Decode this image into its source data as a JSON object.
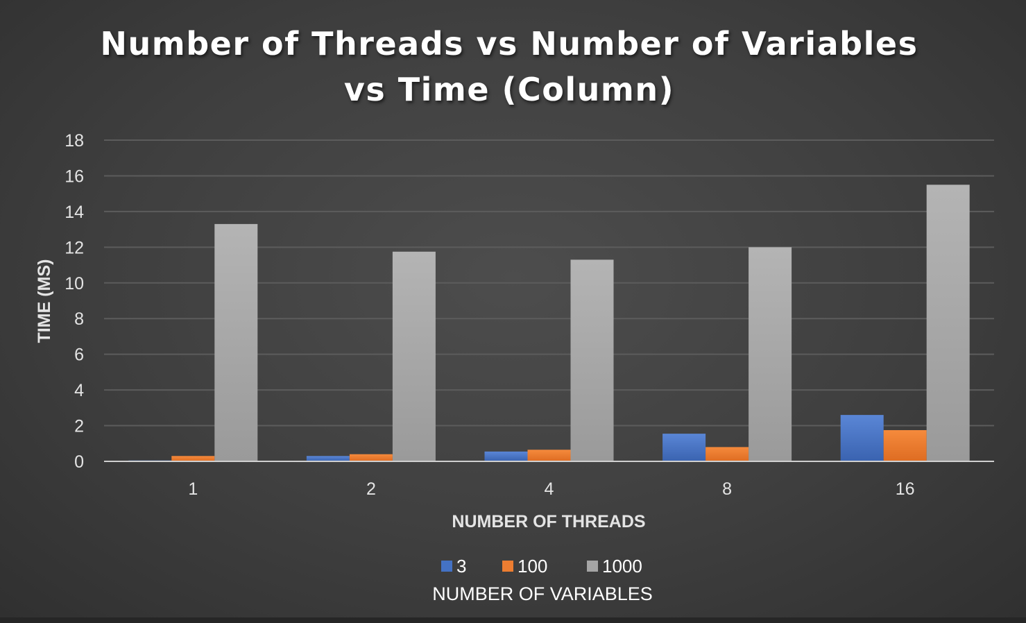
{
  "chart_data": {
    "type": "bar",
    "title_lines": [
      "Number of Threads vs Number of Variables",
      "vs Time (Column)"
    ],
    "xlabel": "NUMBER OF THREADS",
    "ylabel": "TIME (MS)",
    "legend_title": "NUMBER OF VARIABLES",
    "legend_position": "bottom",
    "grid": true,
    "categories": [
      "1",
      "2",
      "4",
      "8",
      "16"
    ],
    "ylim": [
      0,
      18
    ],
    "yticks": [
      0,
      2,
      4,
      6,
      8,
      10,
      12,
      14,
      16,
      18
    ],
    "series": [
      {
        "name": "3",
        "color": "#4472c4",
        "values": [
          0.05,
          0.3,
          0.55,
          1.55,
          2.6
        ]
      },
      {
        "name": "100",
        "color": "#ed7d31",
        "values": [
          0.3,
          0.4,
          0.65,
          0.8,
          1.75
        ]
      },
      {
        "name": "1000",
        "color": "#a5a5a5",
        "values": [
          13.3,
          11.75,
          11.3,
          12.0,
          15.5
        ]
      }
    ]
  }
}
